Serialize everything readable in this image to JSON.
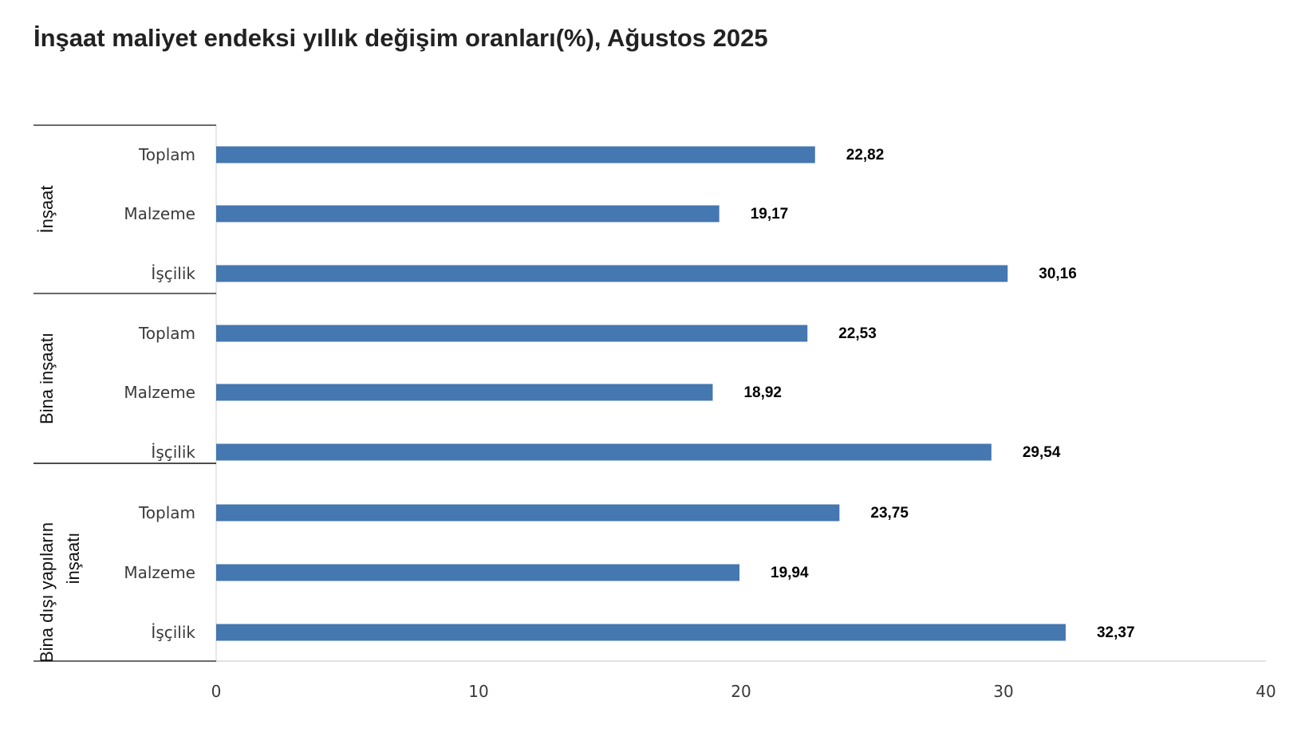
{
  "chart_data": {
    "type": "bar",
    "orientation": "horizontal",
    "title": "İnşaat maliyet endeksi yıllık değişim oranları(%), Ağustos 2025",
    "xlabel": "",
    "ylabel": "",
    "xlim": [
      0,
      40
    ],
    "x_ticks": [
      "0",
      "10",
      "20",
      "30",
      "40"
    ],
    "bar_color": "#4577b0",
    "grid": false,
    "legend": "none",
    "groups": [
      {
        "label": "İnşaat",
        "categories": [
          "Toplam",
          "Malzeme",
          "İşçilik"
        ],
        "values": [
          22.82,
          19.17,
          30.16
        ],
        "value_labels": [
          "22,82",
          "19,17",
          "30,16"
        ]
      },
      {
        "label": "Bina inşaatı",
        "categories": [
          "Toplam",
          "Malzeme",
          "İşçilik"
        ],
        "values": [
          22.53,
          18.92,
          29.54
        ],
        "value_labels": [
          "22,53",
          "18,92",
          "29,54"
        ]
      },
      {
        "label": "Bina dışı yapıların inşaatı",
        "label_lines": [
          "Bina dışı yapıların",
          "inşaatı"
        ],
        "categories": [
          "Toplam",
          "Malzeme",
          "İşçilik"
        ],
        "values": [
          23.75,
          19.94,
          32.37
        ],
        "value_labels": [
          "23,75",
          "19,94",
          "32,37"
        ]
      }
    ]
  }
}
